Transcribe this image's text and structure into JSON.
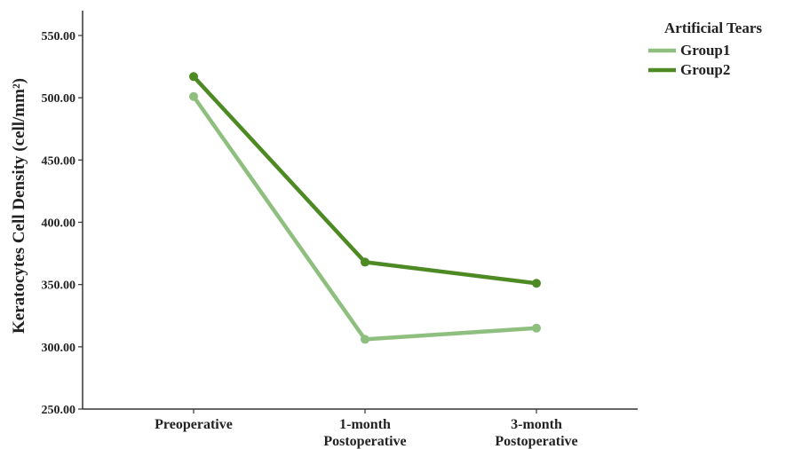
{
  "chart_data": {
    "type": "line",
    "title": "",
    "xlabel": "",
    "ylabel": "Keratocytes Cell Density (cell/mm²)",
    "categories": [
      "Preoperative",
      "1-month\nPostoperative",
      "3-month\nPostoperative"
    ],
    "ylim": [
      250,
      560
    ],
    "yticks": [
      "250.00",
      "300.00",
      "350.00",
      "400.00",
      "450.00",
      "500.00",
      "550.00"
    ],
    "grid": false,
    "legend": {
      "title": "Artificial Tears",
      "position": "top-right"
    },
    "series": [
      {
        "name": "Group1",
        "values": [
          501,
          306,
          315
        ],
        "color": "#8fbf7f"
      },
      {
        "name": "Group2",
        "values": [
          517,
          368,
          351
        ],
        "color": "#4e8a24"
      }
    ]
  }
}
